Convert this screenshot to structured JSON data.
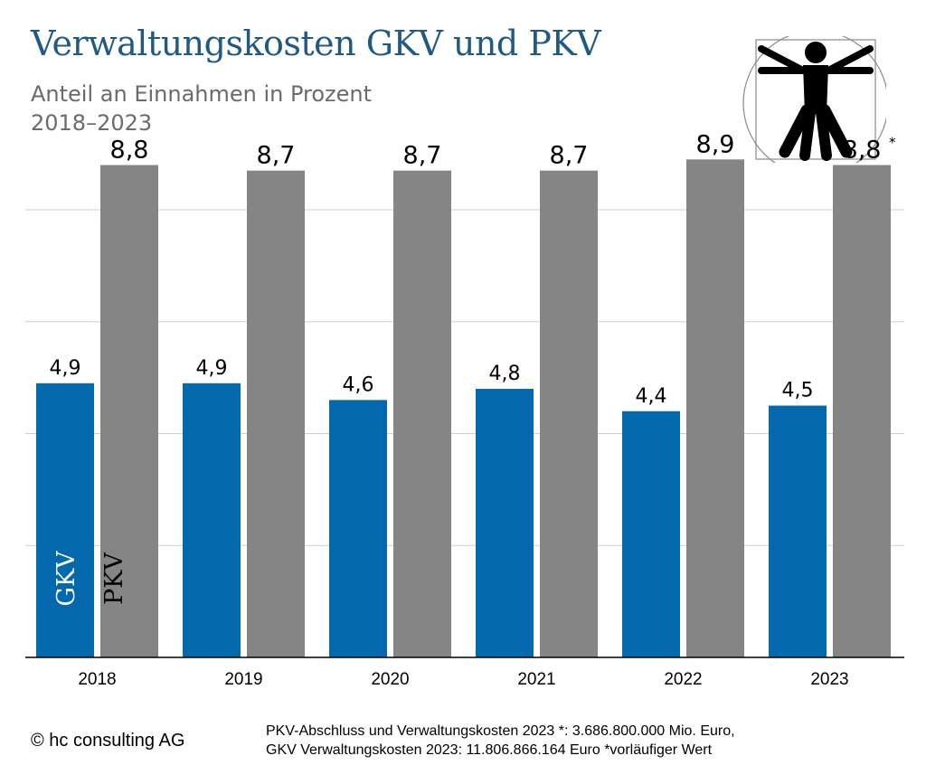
{
  "title": "Verwaltungskosten GKV und PKV",
  "subtitle_line1": "Anteil an Einnahmen in Prozent",
  "subtitle_line2": "2018–2023",
  "chart_data": {
    "type": "bar",
    "categories": [
      "2018",
      "2019",
      "2020",
      "2021",
      "2022",
      "2023"
    ],
    "series": [
      {
        "name": "GKV",
        "values": [
          4.9,
          4.9,
          4.6,
          4.8,
          4.4,
          4.5
        ],
        "labels": [
          "4,9",
          "4,9",
          "4,6",
          "4,8",
          "4,4",
          "4,5"
        ],
        "color": "#0468ad"
      },
      {
        "name": "PKV",
        "values": [
          8.8,
          8.7,
          8.7,
          8.7,
          8.9,
          8.8
        ],
        "labels": [
          "8,8",
          "8,7",
          "8,7",
          "8,7",
          "8,9",
          "8,8"
        ],
        "color": "#858585"
      }
    ],
    "annotations": [
      {
        "category": "2023",
        "series": "PKV",
        "text": "*"
      }
    ],
    "ylim": [
      0,
      10
    ],
    "y_grid": [
      2,
      4,
      6,
      8
    ],
    "legend": "in-bar labels (GKV, PKV) on first category",
    "title": "Verwaltungskosten GKV und PKV",
    "xlabel": "",
    "ylabel": ""
  },
  "footer": {
    "copyright": "© hc consulting AG",
    "note_line1": "PKV-Abschluss und Verwaltungskosten 2023 *: 3.686.800.000 Mio. Euro,",
    "note_line2": "GKV Verwaltungskosten 2023: 11.806.866.164 Euro *vorläufiger Wert"
  },
  "logo_icon": "vitruvian-man-icon"
}
